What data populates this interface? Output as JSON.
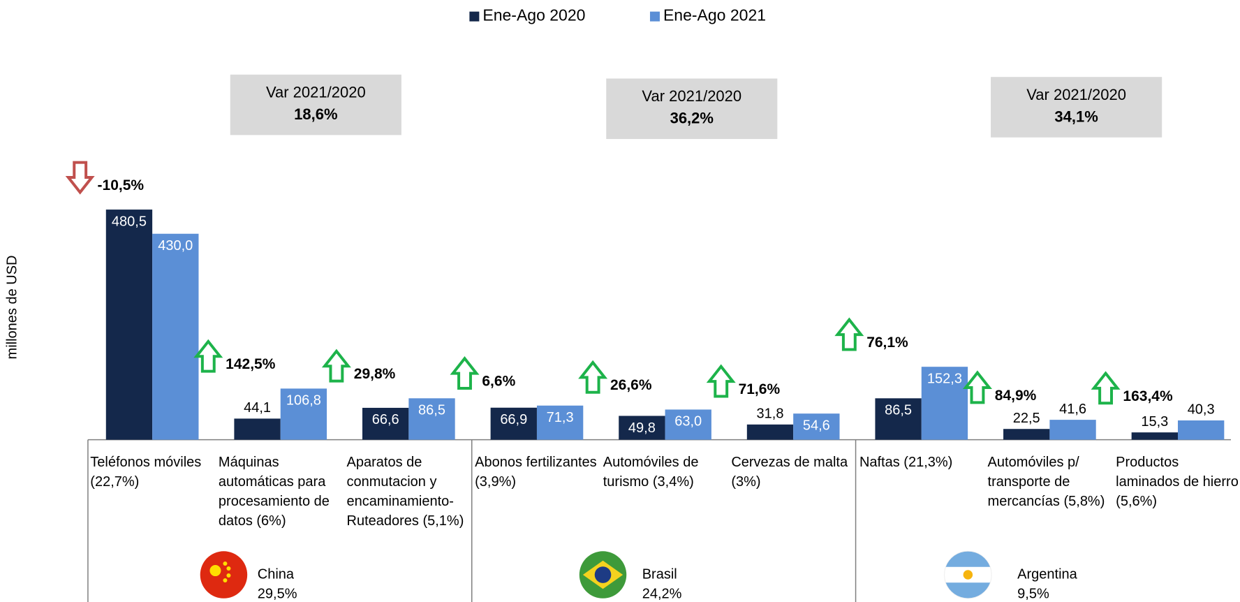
{
  "chart_data": {
    "type": "bar",
    "y_label": "millones de USD",
    "categories": [
      "Teléfonos móviles (22,7%)",
      "Máquinas automáticas para procesamiento de datos (6%)",
      "Aparatos de conmutacion y encaminamiento-Ruteadores (5,1%)",
      "Abonos fertilizantes (3,9%)",
      "Automóviles de turismo (3,4%)",
      "Cervezas de malta (3%)",
      "Naftas (21,3%)",
      "Automóviles p/ transporte de mercancías (5,8%)",
      "Productos laminados de hierro (5,6%)"
    ],
    "series": [
      {
        "name": "Ene-Ago 2020",
        "color": "#14284b",
        "values": [
          480.5,
          44.1,
          66.6,
          66.9,
          49.8,
          31.8,
          86.5,
          22.5,
          15.3
        ],
        "value_labels": [
          "480,5",
          "44,1",
          "66,6",
          "66,9",
          "49,8",
          "31,8",
          "86,5",
          "22,5",
          "15,3"
        ]
      },
      {
        "name": "Ene-Ago 2021",
        "color": "#5b8fd6",
        "values": [
          430.0,
          106.8,
          86.5,
          71.3,
          63.0,
          54.6,
          152.3,
          41.6,
          40.3
        ],
        "value_labels": [
          "430,0",
          "106,8",
          "86,5",
          "71,3",
          "63,0",
          "54,6",
          "152,3",
          "41,6",
          "40,3"
        ]
      }
    ],
    "variation": [
      -10.5,
      142.5,
      29.8,
      6.6,
      26.6,
      71.6,
      76.1,
      84.9,
      163.4
    ],
    "variation_labels": [
      "-10,5%",
      "142,5%",
      "29,8%",
      "6,6%",
      "26,6%",
      "71,6%",
      "76,1%",
      "84,9%",
      "163,4%"
    ],
    "groups": [
      {
        "country": "China",
        "share": 29.5,
        "share_label": "29,5%",
        "var_title": "Var 2021/2020",
        "var": 18.6,
        "var_label": "18,6%"
      },
      {
        "country": "Brasil",
        "share": 24.2,
        "share_label": "24,2%",
        "var_title": "Var 2021/2020",
        "var": 36.2,
        "var_label": "36,2%"
      },
      {
        "country": "Argentina",
        "share": 9.5,
        "share_label": "9,5%",
        "var_title": "Var 2021/2020",
        "var": 34.1,
        "var_label": "34,1%"
      }
    ],
    "ylim": [
      0,
      500
    ],
    "legend": "top"
  }
}
